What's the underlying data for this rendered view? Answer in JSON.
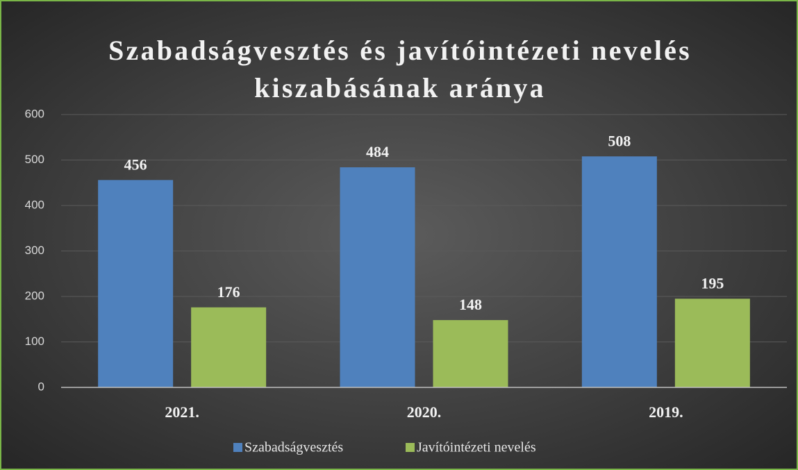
{
  "chart_data": {
    "type": "bar",
    "title": "Szabadságvesztés és javítóintézeti nevelés kiszabásának aránya",
    "categories": [
      "2021.",
      "2020.",
      "2019."
    ],
    "series": [
      {
        "name": "Szabadságvesztés",
        "color": "#4f81bd",
        "values": [
          456,
          484,
          508
        ]
      },
      {
        "name": "Javítóintézeti nevelés",
        "color": "#9bbb59",
        "values": [
          176,
          148,
          195
        ]
      }
    ],
    "ylim": [
      0,
      600
    ],
    "yticks": [
      0,
      100,
      200,
      300,
      400,
      500,
      600
    ],
    "grid": true,
    "legend": "bottom"
  }
}
